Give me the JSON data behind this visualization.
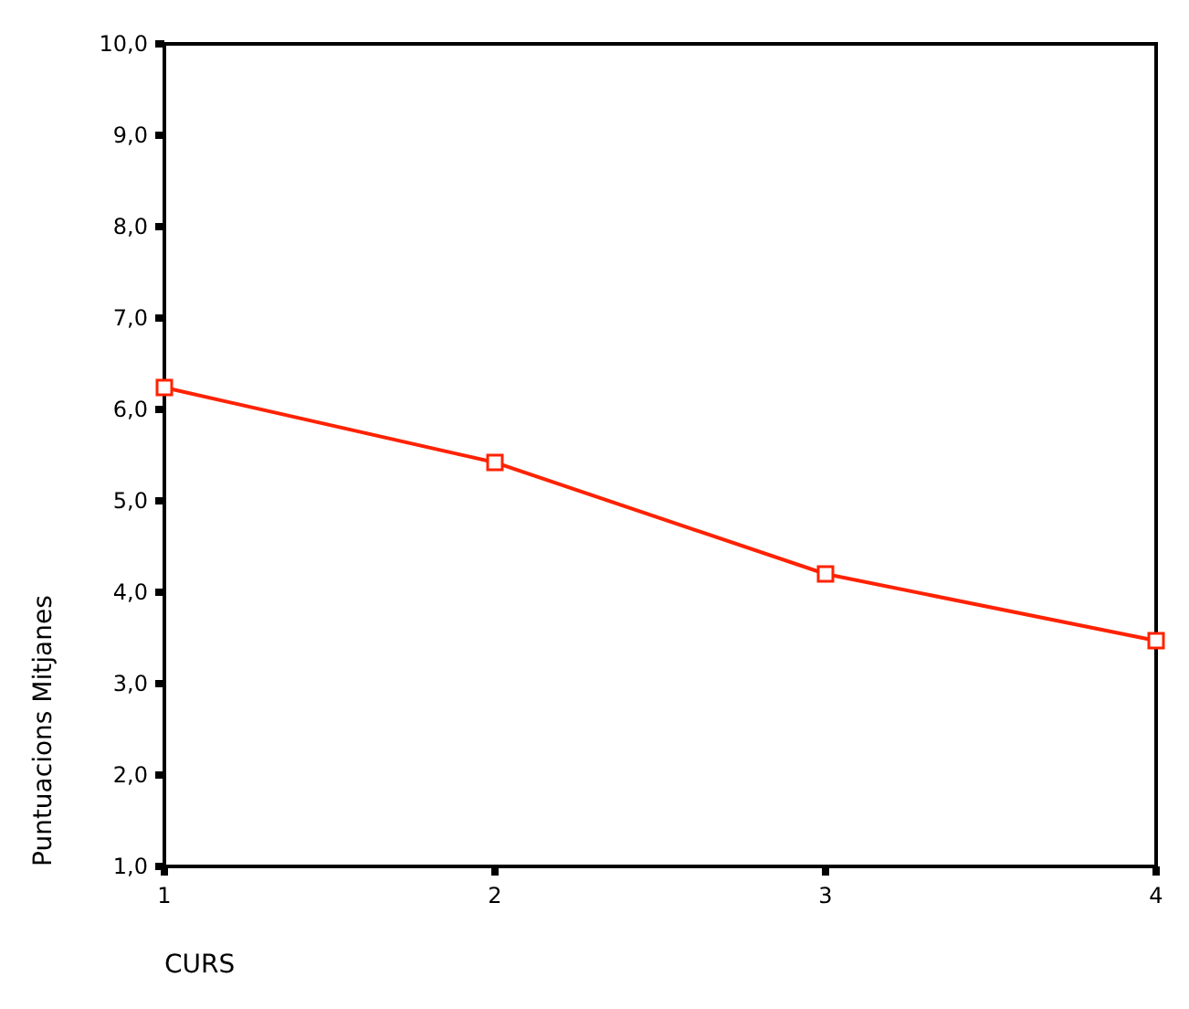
{
  "chart_data": {
    "type": "line",
    "xlabel": "CURS",
    "ylabel": "Puntuacions Mitjanes",
    "x": [
      1,
      2,
      3,
      4
    ],
    "series": [
      {
        "color": "#ff2200",
        "values": [
          6.24,
          5.42,
          4.2,
          3.47
        ]
      }
    ],
    "xlim": [
      1,
      4
    ],
    "xticks": [
      1,
      2,
      3,
      4
    ],
    "ylim": [
      1,
      10
    ],
    "yticks": [
      {
        "value": 1,
        "label": "1,0"
      },
      {
        "value": 2,
        "label": "2,0"
      },
      {
        "value": 3,
        "label": "3,0"
      },
      {
        "value": 4,
        "label": "4,0"
      },
      {
        "value": 5,
        "label": "5,0"
      },
      {
        "value": 6,
        "label": "6,0"
      },
      {
        "value": 7,
        "label": "7,0"
      },
      {
        "value": 8,
        "label": "8,0"
      },
      {
        "value": 9,
        "label": "9,0"
      },
      {
        "value": 10,
        "label": "10,0"
      }
    ],
    "grid": false,
    "marker": "square",
    "line_style": "solid"
  }
}
